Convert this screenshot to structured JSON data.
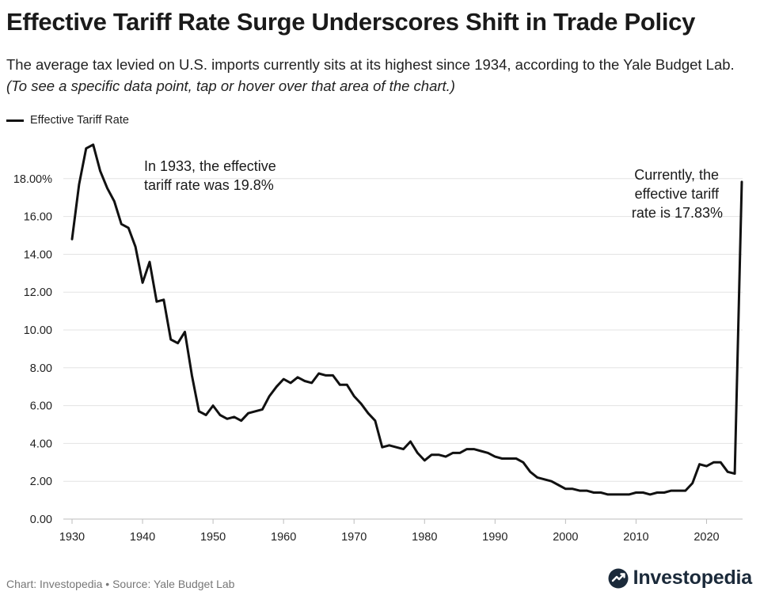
{
  "title": "Effective Tariff Rate Surge Underscores Shift in Trade Policy",
  "subtitle": "The average tax levied on U.S. imports currently sits at its highest since 1934, according to the Yale Budget Lab.",
  "subtitle_note": "(To see a specific data point, tap or hover over that area of the chart.)",
  "legend": {
    "label": "Effective Tariff Rate"
  },
  "source": "Chart: Investopedia • Source: Yale Budget Lab",
  "brand": "Investopedia",
  "colors": {
    "line": "#111111",
    "grid": "#e3e3e3",
    "text": "#1a1a1a"
  },
  "chart_data": {
    "type": "line",
    "title": "Effective Tariff Rate Surge Underscores Shift in Trade Policy",
    "xlabel": "",
    "ylabel": "",
    "xlim": [
      1930,
      2025
    ],
    "ylim": [
      0,
      20
    ],
    "y_ticks": [
      0,
      2,
      4,
      6,
      8,
      10,
      12,
      14,
      16,
      18
    ],
    "y_tick_labels": [
      "0.00",
      "2.00",
      "4.00",
      "6.00",
      "8.00",
      "10.00",
      "12.00",
      "14.00",
      "16.00",
      "18.00%"
    ],
    "x_ticks": [
      1930,
      1940,
      1950,
      1960,
      1970,
      1980,
      1990,
      2000,
      2010,
      2020
    ],
    "x_tick_labels": [
      "1930",
      "1940",
      "1950",
      "1960",
      "1970",
      "1980",
      "1990",
      "2000",
      "2010",
      "2020"
    ],
    "grid": true,
    "series": [
      {
        "name": "Effective Tariff Rate",
        "x": [
          1930,
          1931,
          1932,
          1933,
          1934,
          1935,
          1936,
          1937,
          1938,
          1939,
          1940,
          1941,
          1942,
          1943,
          1944,
          1945,
          1946,
          1947,
          1948,
          1949,
          1950,
          1951,
          1952,
          1953,
          1954,
          1955,
          1956,
          1957,
          1958,
          1959,
          1960,
          1961,
          1962,
          1963,
          1964,
          1965,
          1966,
          1967,
          1968,
          1969,
          1970,
          1971,
          1972,
          1973,
          1974,
          1975,
          1976,
          1977,
          1978,
          1979,
          1980,
          1981,
          1982,
          1983,
          1984,
          1985,
          1986,
          1987,
          1988,
          1989,
          1990,
          1991,
          1992,
          1993,
          1994,
          1995,
          1996,
          1997,
          1998,
          1999,
          2000,
          2001,
          2002,
          2003,
          2004,
          2005,
          2006,
          2007,
          2008,
          2009,
          2010,
          2011,
          2012,
          2013,
          2014,
          2015,
          2016,
          2017,
          2018,
          2019,
          2020,
          2021,
          2022,
          2023,
          2024,
          2025
        ],
        "values": [
          14.8,
          17.7,
          19.6,
          19.8,
          18.4,
          17.5,
          16.8,
          15.6,
          15.4,
          14.4,
          12.5,
          13.6,
          11.5,
          11.6,
          9.5,
          9.3,
          9.9,
          7.6,
          5.7,
          5.5,
          6.0,
          5.5,
          5.3,
          5.4,
          5.2,
          5.6,
          5.7,
          5.8,
          6.5,
          7.0,
          7.4,
          7.2,
          7.5,
          7.3,
          7.2,
          7.7,
          7.6,
          7.6,
          7.1,
          7.1,
          6.5,
          6.1,
          5.6,
          5.2,
          3.8,
          3.9,
          3.8,
          3.7,
          4.1,
          3.5,
          3.1,
          3.4,
          3.4,
          3.3,
          3.5,
          3.5,
          3.7,
          3.7,
          3.6,
          3.5,
          3.3,
          3.2,
          3.2,
          3.2,
          3.0,
          2.5,
          2.2,
          2.1,
          2.0,
          1.8,
          1.6,
          1.6,
          1.5,
          1.5,
          1.4,
          1.4,
          1.3,
          1.3,
          1.3,
          1.3,
          1.4,
          1.4,
          1.3,
          1.4,
          1.4,
          1.5,
          1.5,
          1.5,
          1.9,
          2.9,
          2.8,
          3.0,
          3.0,
          2.5,
          2.4,
          17.83
        ]
      }
    ],
    "annotations": [
      {
        "year": 1933,
        "lines": [
          "In 1933, the effective",
          "tariff rate was 19.8%"
        ]
      },
      {
        "year": 2025,
        "lines": [
          "Currently, the",
          "effective tariff",
          "rate is 17.83%"
        ]
      }
    ]
  }
}
